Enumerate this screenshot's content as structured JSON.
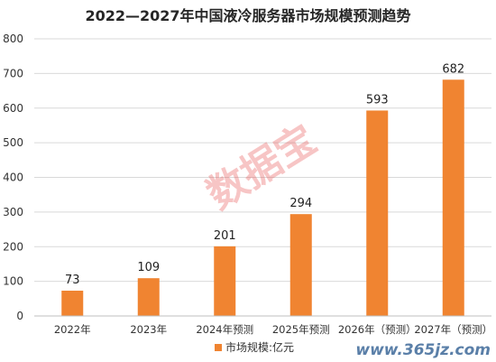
{
  "chart_data": {
    "type": "bar",
    "title": "2022—2027年中国液冷服务器市场规模预测趋势",
    "categories": [
      "2022年",
      "2023年",
      "2024年预测",
      "2025年预测",
      "2026年（预测）",
      "2027年（预测）"
    ],
    "series": [
      {
        "name": "市场规模:亿元",
        "values": [
          73,
          109,
          201,
          294,
          593,
          682
        ]
      }
    ],
    "data_labels": [
      "73",
      "109",
      "201",
      "294",
      "593",
      "682"
    ],
    "y_ticks": [
      "0",
      "100",
      "200",
      "300",
      "400",
      "500",
      "600",
      "700",
      "800"
    ],
    "ylim": [
      0,
      800
    ],
    "xlabel": "",
    "ylabel": "",
    "grid": true,
    "legend_position": "bottom-center",
    "colors": {
      "bar": "#f08431",
      "grid": "#d9d9d9",
      "axis": "#bfbfbf"
    }
  },
  "watermark": "数据宝",
  "site_mark": "www.365jz.com"
}
